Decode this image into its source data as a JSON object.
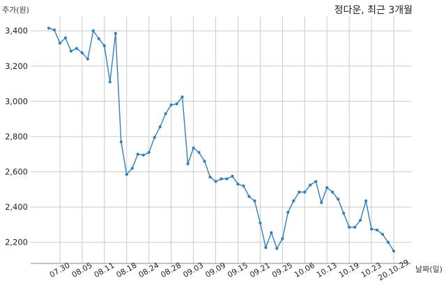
{
  "chart_data": {
    "type": "line",
    "title": "정다운, 최근 3개월",
    "ylabel": "주가(원)",
    "xlabel": "날짜(일)",
    "x": [
      "2020-07-28",
      "2020-07-29",
      "2020-07-30",
      "2020-07-31",
      "2020-08-03",
      "2020-08-04",
      "2020-08-05",
      "2020-08-06",
      "2020-08-07",
      "2020-08-10",
      "2020-08-11",
      "2020-08-12",
      "2020-08-13",
      "2020-08-14",
      "2020-08-18",
      "2020-08-19",
      "2020-08-20",
      "2020-08-21",
      "2020-08-24",
      "2020-08-25",
      "2020-08-26",
      "2020-08-27",
      "2020-08-28",
      "2020-08-31",
      "2020-09-01",
      "2020-09-02",
      "2020-09-03",
      "2020-09-04",
      "2020-09-07",
      "2020-09-08",
      "2020-09-09",
      "2020-09-10",
      "2020-09-11",
      "2020-09-14",
      "2020-09-15",
      "2020-09-16",
      "2020-09-17",
      "2020-09-18",
      "2020-09-21",
      "2020-09-22",
      "2020-09-23",
      "2020-09-24",
      "2020-09-25",
      "2020-09-28",
      "2020-09-29",
      "2020-10-05",
      "2020-10-06",
      "2020-10-07",
      "2020-10-08",
      "2020-10-12",
      "2020-10-13",
      "2020-10-14",
      "2020-10-15",
      "2020-10-16",
      "2020-10-19",
      "2020-10-20",
      "2020-10-21",
      "2020-10-22",
      "2020-10-23",
      "2020-10-26",
      "2020-10-27",
      "2020-10-28",
      "2020-10-29"
    ],
    "series": [
      {
        "values": [
          3415,
          3405,
          3330,
          3360,
          3285,
          3300,
          3275,
          3240,
          3400,
          3355,
          3315,
          3110,
          3385,
          2770,
          2585,
          2620,
          2700,
          2695,
          2710,
          2795,
          2855,
          2930,
          2980,
          2985,
          3025,
          2645,
          2735,
          2710,
          2660,
          2570,
          2545,
          2560,
          2560,
          2575,
          2530,
          2520,
          2460,
          2435,
          2310,
          2170,
          2255,
          2165,
          2220,
          2370,
          2435,
          2485,
          2485,
          2525,
          2545,
          2425,
          2510,
          2485,
          2445,
          2365,
          2285,
          2285,
          2325,
          2435,
          2275,
          2270,
          2245,
          2200,
          2150
        ]
      }
    ],
    "x_ticks": [
      {
        "x": "2020-07-30",
        "label": "07.30"
      },
      {
        "x": "2020-08-05",
        "label": "08.05"
      },
      {
        "x": "2020-08-11",
        "label": "08.11"
      },
      {
        "x": "2020-08-18",
        "label": "08.18"
      },
      {
        "x": "2020-08-24",
        "label": "08.24"
      },
      {
        "x": "2020-08-28",
        "label": "08.28"
      },
      {
        "x": "2020-09-03",
        "label": "09.03"
      },
      {
        "x": "2020-09-09",
        "label": "09.09"
      },
      {
        "x": "2020-09-15",
        "label": "09.15"
      },
      {
        "x": "2020-09-21",
        "label": "09.21"
      },
      {
        "x": "2020-09-25",
        "label": "09.25"
      },
      {
        "x": "2020-10-06",
        "label": "10.06"
      },
      {
        "x": "2020-10-13",
        "label": "10.13"
      },
      {
        "x": "2020-10-19",
        "label": "10.19"
      },
      {
        "x": "2020-10-23",
        "label": "10.23"
      },
      {
        "x": "2020-10-29",
        "label": "20.10.29"
      }
    ],
    "y_ticks": [
      {
        "y": 2200,
        "label": "2,200"
      },
      {
        "y": 2400,
        "label": "2,400"
      },
      {
        "y": 2600,
        "label": "2,600"
      },
      {
        "y": 2800,
        "label": "2,800"
      },
      {
        "y": 3000,
        "label": "3,000"
      },
      {
        "y": 3200,
        "label": "3,200"
      },
      {
        "y": 3400,
        "label": "3,400"
      }
    ],
    "ylim": [
      2080,
      3480
    ],
    "grid": true,
    "legend": "none",
    "colors": {
      "line": "#2f7fbd",
      "grid": "#c9c9c9",
      "axis": "#8a8a8a"
    }
  }
}
